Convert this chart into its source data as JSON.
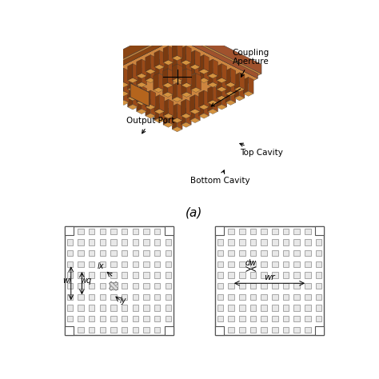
{
  "title_3d": "(a)",
  "bg_color": "#ffffff",
  "copper_color": "#b5651d",
  "copper_dark": "#8B4513",
  "copper_top": "#cd853f",
  "copper_side": "#a0522d",
  "pin_color": "#c8792a",
  "label_coupling": "Coupling\nAperture",
  "label_output": "Output Port",
  "label_top": "Top Cavity",
  "label_bottom": "Bottom Cavity",
  "label_wi": "wi",
  "label_wq": "wq",
  "label_lx": "lx",
  "label_ly": "ly",
  "label_dw": "dw",
  "label_wr": "wr",
  "grid_color": "#aaaaaa",
  "square_color": "#e8e8e8",
  "square_edge": "#888888"
}
